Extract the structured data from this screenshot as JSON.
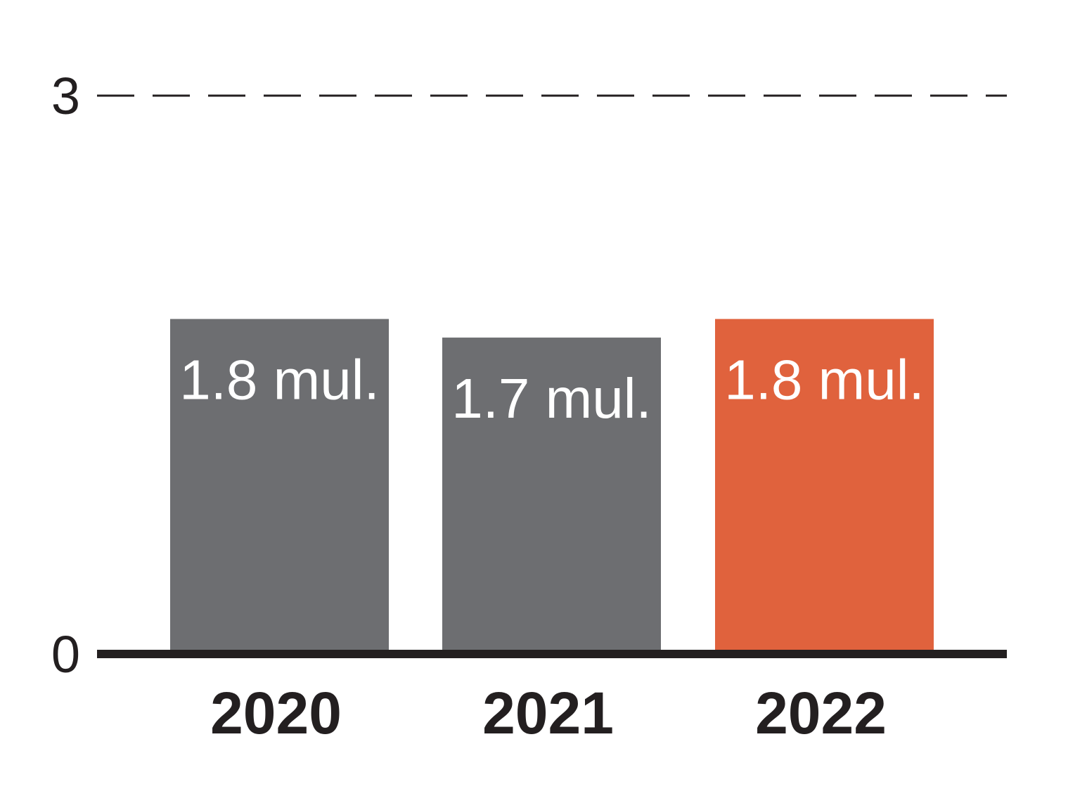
{
  "chart_data": {
    "type": "bar",
    "categories": [
      "2020",
      "2021",
      "2022"
    ],
    "values": [
      1.8,
      1.7,
      1.8
    ],
    "data_labels": [
      "1.8 mul.",
      "1.7 mul.",
      "1.8 mul."
    ],
    "y_ticks": [
      "0",
      "3"
    ],
    "ylim": [
      0,
      3
    ],
    "grid": "dashed line at 3",
    "legend": "none",
    "colors": {
      "default_bar": "#6d6e71",
      "highlight_bar": "#e0623d",
      "axis": "#231f20",
      "text": "#231f20",
      "bar_label_text": "#ffffff"
    },
    "highlight_index": 2
  }
}
